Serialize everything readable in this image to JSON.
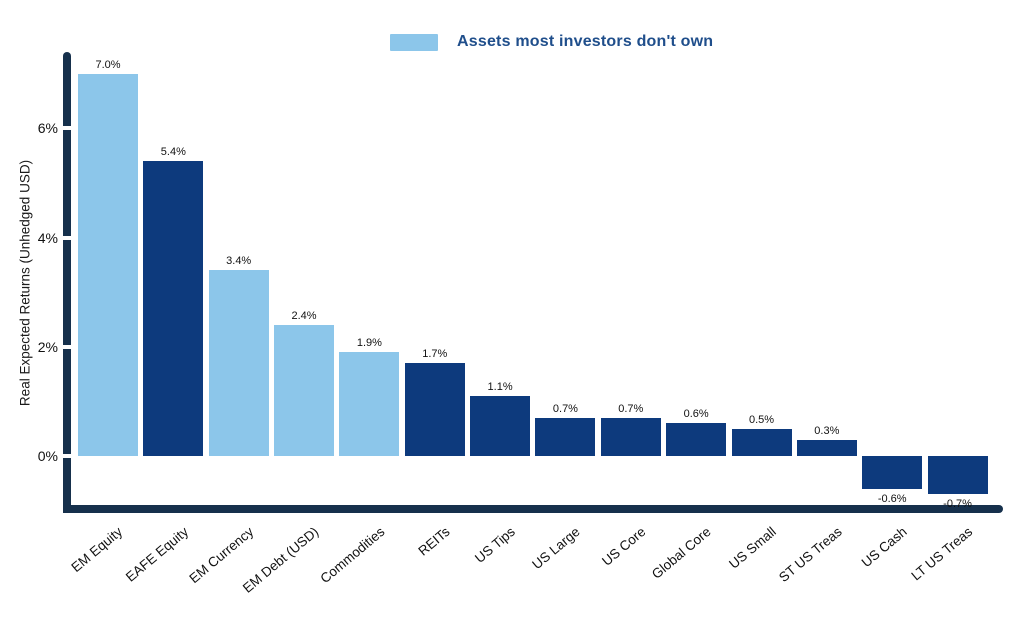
{
  "chart_data": {
    "type": "bar",
    "title": "",
    "legend": {
      "label": "Assets most investors don't own",
      "position": "top-center"
    },
    "ylabel": "Real Expected Returns (Unhedged USD)",
    "xlabel": "",
    "ylim": [
      -1.05,
      7.4
    ],
    "grid": false,
    "yticks": [
      {
        "value": 0,
        "label": "0%"
      },
      {
        "value": 2,
        "label": "2%"
      },
      {
        "value": 4,
        "label": "4%"
      },
      {
        "value": 6,
        "label": "6%"
      }
    ],
    "categories": [
      "EM Equity",
      "EAFE Equity",
      "EM Currency",
      "EM Debt (USD)",
      "Commodities",
      "REITs",
      "US Tips",
      "US Large",
      "US Core",
      "Global Core",
      "US Small",
      "ST US Treas",
      "US Cash",
      "LT US Treas"
    ],
    "values": [
      7.0,
      5.4,
      3.4,
      2.4,
      1.9,
      1.7,
      1.1,
      0.7,
      0.7,
      0.6,
      0.5,
      0.3,
      -0.6,
      -0.7
    ],
    "value_labels": [
      "7.0%",
      "5.4%",
      "3.4%",
      "2.4%",
      "1.9%",
      "1.7%",
      "1.1%",
      "0.7%",
      "0.7%",
      "0.6%",
      "0.5%",
      "0.3%",
      "-0.6%",
      "-0.7%"
    ],
    "highlighted": [
      true,
      false,
      true,
      true,
      true,
      false,
      false,
      false,
      false,
      false,
      false,
      false,
      false,
      false
    ],
    "colors": {
      "highlight_bar": "#8CC6EA",
      "bar": "#0D3A7D",
      "axis": "#16304C",
      "legend_text": "#1F4E8B",
      "label_text": "#111111"
    }
  }
}
